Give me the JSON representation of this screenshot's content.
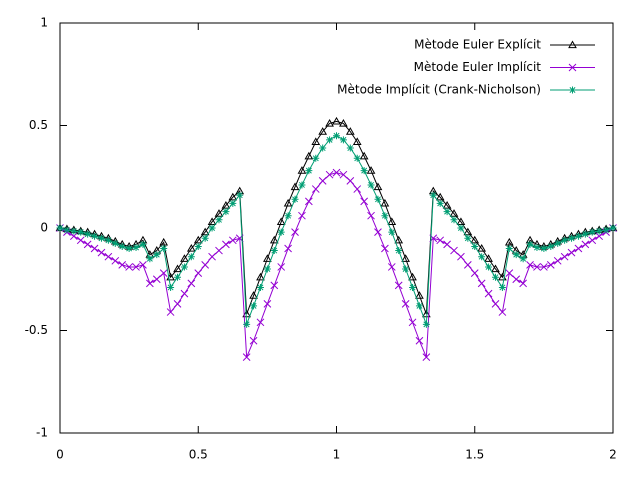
{
  "chart_data": {
    "type": "line",
    "x": [
      0,
      0.025,
      0.05,
      0.075,
      0.1,
      0.125,
      0.15,
      0.175,
      0.2,
      0.225,
      0.25,
      0.275,
      0.3,
      0.325,
      0.35,
      0.375,
      0.4,
      0.425,
      0.45,
      0.475,
      0.5,
      0.525,
      0.55,
      0.575,
      0.6,
      0.625,
      0.65,
      0.675,
      0.7,
      0.725,
      0.75,
      0.775,
      0.8,
      0.825,
      0.85,
      0.875,
      0.9,
      0.925,
      0.95,
      0.975,
      1,
      1.025,
      1.05,
      1.075,
      1.1,
      1.125,
      1.15,
      1.175,
      1.2,
      1.225,
      1.25,
      1.275,
      1.3,
      1.325,
      1.35,
      1.375,
      1.4,
      1.425,
      1.45,
      1.475,
      1.5,
      1.525,
      1.55,
      1.575,
      1.6,
      1.625,
      1.65,
      1.675,
      1.7,
      1.725,
      1.75,
      1.775,
      1.8,
      1.825,
      1.85,
      1.875,
      1.9,
      1.925,
      1.95,
      1.975,
      2
    ],
    "series": [
      {
        "name": "Mètode Euler Explícit",
        "color": "#000000",
        "marker": "triangle",
        "values": [
          0,
          -0.005,
          -0.01,
          -0.015,
          -0.02,
          -0.03,
          -0.04,
          -0.05,
          -0.065,
          -0.08,
          -0.09,
          -0.08,
          -0.06,
          -0.13,
          -0.11,
          -0.07,
          -0.24,
          -0.2,
          -0.15,
          -0.1,
          -0.06,
          -0.02,
          0.03,
          0.07,
          0.11,
          0.15,
          0.18,
          -0.42,
          -0.33,
          -0.24,
          -0.15,
          -0.06,
          0.03,
          0.12,
          0.2,
          0.28,
          0.35,
          0.42,
          0.47,
          0.51,
          0.52,
          0.51,
          0.47,
          0.42,
          0.35,
          0.28,
          0.2,
          0.12,
          0.03,
          -0.06,
          -0.15,
          -0.24,
          -0.33,
          -0.42,
          0.18,
          0.15,
          0.11,
          0.07,
          0.03,
          -0.02,
          -0.06,
          -0.1,
          -0.15,
          -0.2,
          -0.24,
          -0.07,
          -0.11,
          -0.13,
          -0.06,
          -0.08,
          -0.09,
          -0.08,
          -0.065,
          -0.05,
          -0.04,
          -0.03,
          -0.02,
          -0.015,
          -0.01,
          -0.005,
          0
        ]
      },
      {
        "name": "Mètode Euler Implícit",
        "color": "#9400d3",
        "marker": "cross",
        "values": [
          0,
          -0.02,
          -0.04,
          -0.06,
          -0.08,
          -0.1,
          -0.12,
          -0.14,
          -0.16,
          -0.18,
          -0.19,
          -0.19,
          -0.18,
          -0.27,
          -0.25,
          -0.22,
          -0.41,
          -0.37,
          -0.32,
          -0.27,
          -0.22,
          -0.18,
          -0.14,
          -0.11,
          -0.08,
          -0.06,
          -0.05,
          -0.63,
          -0.55,
          -0.46,
          -0.37,
          -0.28,
          -0.19,
          -0.1,
          -0.02,
          0.06,
          0.13,
          0.19,
          0.23,
          0.26,
          0.27,
          0.26,
          0.23,
          0.19,
          0.13,
          0.06,
          -0.02,
          -0.1,
          -0.19,
          -0.28,
          -0.37,
          -0.46,
          -0.55,
          -0.63,
          -0.05,
          -0.06,
          -0.08,
          -0.11,
          -0.14,
          -0.18,
          -0.22,
          -0.27,
          -0.32,
          -0.37,
          -0.41,
          -0.22,
          -0.25,
          -0.27,
          -0.18,
          -0.19,
          -0.19,
          -0.18,
          -0.16,
          -0.14,
          -0.12,
          -0.1,
          -0.08,
          -0.06,
          -0.04,
          -0.02,
          0
        ]
      },
      {
        "name": "Mètode Implícit (Crank-Nicholson)",
        "color": "#009e73",
        "marker": "star",
        "values": [
          0,
          -0.01,
          -0.015,
          -0.02,
          -0.03,
          -0.04,
          -0.05,
          -0.06,
          -0.075,
          -0.09,
          -0.1,
          -0.095,
          -0.08,
          -0.15,
          -0.13,
          -0.1,
          -0.29,
          -0.24,
          -0.19,
          -0.14,
          -0.09,
          -0.05,
          0,
          0.04,
          0.08,
          0.12,
          0.16,
          -0.47,
          -0.38,
          -0.29,
          -0.2,
          -0.11,
          -0.02,
          0.06,
          0.14,
          0.21,
          0.28,
          0.34,
          0.39,
          0.43,
          0.45,
          0.43,
          0.39,
          0.34,
          0.28,
          0.21,
          0.14,
          0.06,
          -0.02,
          -0.11,
          -0.2,
          -0.29,
          -0.38,
          -0.47,
          0.16,
          0.12,
          0.08,
          0.04,
          0,
          -0.05,
          -0.09,
          -0.14,
          -0.19,
          -0.24,
          -0.29,
          -0.1,
          -0.13,
          -0.15,
          -0.08,
          -0.095,
          -0.1,
          -0.09,
          -0.075,
          -0.06,
          -0.05,
          -0.04,
          -0.03,
          -0.02,
          -0.015,
          -0.01,
          0
        ]
      }
    ],
    "xlim": [
      0,
      2
    ],
    "xticks": [
      0,
      0.5,
      1,
      1.5,
      2
    ],
    "ylim": [
      -1,
      1
    ],
    "yticks": [
      -1,
      -0.5,
      0,
      0.5,
      1
    ],
    "grid": false,
    "legend": "top-right"
  }
}
